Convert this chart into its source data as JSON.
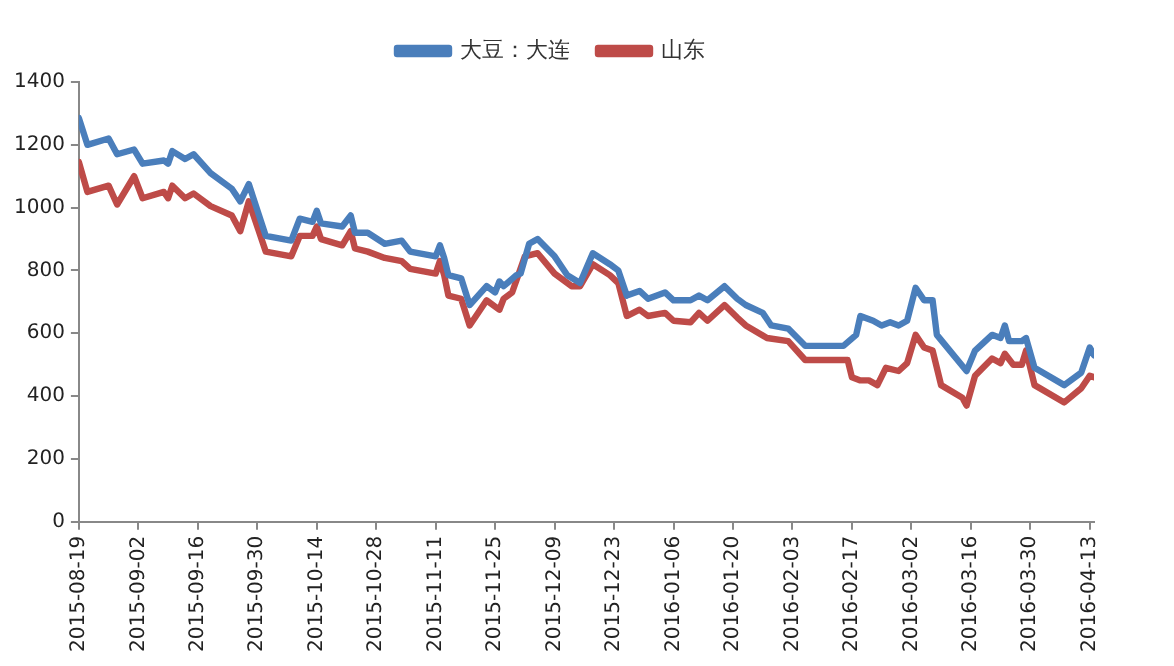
{
  "chart_data": {
    "type": "line",
    "legend": "top",
    "grid": false,
    "marker": "none",
    "line_style": "solid",
    "xlim": [
      "2015-08-19",
      "2016-04-14"
    ],
    "xticks": [
      {
        "value": "2015-08-19",
        "label": "2015-08-19"
      },
      {
        "value": "2015-09-02",
        "label": "2015-09-02"
      },
      {
        "value": "2015-09-16",
        "label": "2015-09-16"
      },
      {
        "value": "2015-09-30",
        "label": "2015-09-30"
      },
      {
        "value": "2015-10-14",
        "label": "2015-10-14"
      },
      {
        "value": "2015-10-28",
        "label": "2015-10-28"
      },
      {
        "value": "2015-11-11",
        "label": "2015-11-11"
      },
      {
        "value": "2015-11-25",
        "label": "2015-11-25"
      },
      {
        "value": "2015-12-09",
        "label": "2015-12-09"
      },
      {
        "value": "2015-12-23",
        "label": "2015-12-23"
      },
      {
        "value": "2016-01-06",
        "label": "2016-01-06"
      },
      {
        "value": "2016-01-20",
        "label": "2016-01-20"
      },
      {
        "value": "2016-02-03",
        "label": "2016-02-03"
      },
      {
        "value": "2016-02-17",
        "label": "2016-02-17"
      },
      {
        "value": "2016-03-02",
        "label": "2016-03-02"
      },
      {
        "value": "2016-03-16",
        "label": "2016-03-16"
      },
      {
        "value": "2016-03-30",
        "label": "2016-03-30"
      },
      {
        "value": "2016-04-13",
        "label": "2016-04-13"
      }
    ],
    "ylim": [
      0,
      1400
    ],
    "yticks": [
      0,
      200,
      400,
      600,
      800,
      1000,
      1200,
      1400
    ],
    "series": [
      {
        "name": "大豆：大连",
        "color": "#4a7ebb",
        "x": [
          "2015-08-19",
          "2015-08-21",
          "2015-08-26",
          "2015-08-28",
          "2015-09-01",
          "2015-09-03",
          "2015-09-08",
          "2015-09-09",
          "2015-09-10",
          "2015-09-13",
          "2015-09-15",
          "2015-09-19",
          "2015-09-24",
          "2015-09-26",
          "2015-09-28",
          "2015-10-02",
          "2015-10-08",
          "2015-10-10",
          "2015-10-13",
          "2015-10-14",
          "2015-10-15",
          "2015-10-20",
          "2015-10-22",
          "2015-10-23",
          "2015-10-26",
          "2015-10-30",
          "2015-11-03",
          "2015-11-05",
          "2015-11-11",
          "2015-11-12",
          "2015-11-13",
          "2015-11-14",
          "2015-11-17",
          "2015-11-19",
          "2015-11-23",
          "2015-11-25",
          "2015-11-26",
          "2015-11-27",
          "2015-11-30",
          "2015-12-01",
          "2015-12-03",
          "2015-12-05",
          "2015-12-09",
          "2015-12-12",
          "2015-12-15",
          "2015-12-18",
          "2015-12-22",
          "2015-12-24",
          "2015-12-26",
          "2015-12-29",
          "2015-12-31",
          "2016-01-04",
          "2016-01-06",
          "2016-01-10",
          "2016-01-12",
          "2016-01-14",
          "2016-01-18",
          "2016-01-21",
          "2016-01-23",
          "2016-01-27",
          "2016-01-29",
          "2016-02-02",
          "2016-02-06",
          "2016-02-15",
          "2016-02-18",
          "2016-02-19",
          "2016-02-22",
          "2016-02-24",
          "2016-02-26",
          "2016-02-28",
          "2016-03-01",
          "2016-03-03",
          "2016-03-05",
          "2016-03-07",
          "2016-03-08",
          "2016-03-15",
          "2016-03-17",
          "2016-03-21",
          "2016-03-23",
          "2016-03-24",
          "2016-03-25",
          "2016-03-28",
          "2016-03-29",
          "2016-03-31",
          "2016-04-07",
          "2016-04-11",
          "2016-04-13",
          "2016-04-14"
        ],
        "values": [
          1285,
          1200,
          1220,
          1170,
          1185,
          1140,
          1150,
          1140,
          1180,
          1155,
          1170,
          1110,
          1060,
          1020,
          1075,
          910,
          895,
          965,
          955,
          990,
          950,
          940,
          975,
          920,
          920,
          885,
          895,
          860,
          845,
          880,
          840,
          785,
          775,
          690,
          750,
          730,
          765,
          750,
          785,
          790,
          885,
          900,
          845,
          785,
          760,
          855,
          820,
          800,
          720,
          735,
          710,
          730,
          705,
          705,
          720,
          705,
          750,
          710,
          690,
          665,
          625,
          615,
          560,
          560,
          595,
          655,
          640,
          625,
          635,
          625,
          640,
          745,
          705,
          705,
          595,
          480,
          545,
          595,
          585,
          625,
          575,
          575,
          585,
          490,
          435,
          475,
          555,
          530
        ]
      },
      {
        "name": "山东",
        "color": "#be4b48",
        "x": [
          "2015-08-19",
          "2015-08-21",
          "2015-08-26",
          "2015-08-28",
          "2015-09-01",
          "2015-09-03",
          "2015-09-08",
          "2015-09-09",
          "2015-09-10",
          "2015-09-13",
          "2015-09-15",
          "2015-09-19",
          "2015-09-24",
          "2015-09-26",
          "2015-09-28",
          "2015-10-02",
          "2015-10-08",
          "2015-10-10",
          "2015-10-13",
          "2015-10-14",
          "2015-10-15",
          "2015-10-20",
          "2015-10-22",
          "2015-10-23",
          "2015-10-26",
          "2015-10-30",
          "2015-11-03",
          "2015-11-05",
          "2015-11-11",
          "2015-11-12",
          "2015-11-13",
          "2015-11-14",
          "2015-11-17",
          "2015-11-19",
          "2015-11-23",
          "2015-11-26",
          "2015-11-27",
          "2015-11-29",
          "2015-12-02",
          "2015-12-05",
          "2015-12-09",
          "2015-12-13",
          "2015-12-15",
          "2015-12-18",
          "2015-12-22",
          "2015-12-24",
          "2015-12-26",
          "2015-12-29",
          "2015-12-31",
          "2016-01-04",
          "2016-01-06",
          "2016-01-10",
          "2016-01-12",
          "2016-01-14",
          "2016-01-18",
          "2016-01-21",
          "2016-01-23",
          "2016-01-28",
          "2016-02-02",
          "2016-02-06",
          "2016-02-16",
          "2016-02-17",
          "2016-02-19",
          "2016-02-21",
          "2016-02-23",
          "2016-02-25",
          "2016-02-28",
          "2016-03-01",
          "2016-03-03",
          "2016-03-05",
          "2016-03-07",
          "2016-03-09",
          "2016-03-14",
          "2016-03-15",
          "2016-03-17",
          "2016-03-21",
          "2016-03-23",
          "2016-03-24",
          "2016-03-26",
          "2016-03-28",
          "2016-03-29",
          "2016-03-31",
          "2016-04-07",
          "2016-04-11",
          "2016-04-13",
          "2016-04-14"
        ],
        "values": [
          1145,
          1050,
          1070,
          1010,
          1100,
          1030,
          1050,
          1030,
          1070,
          1030,
          1045,
          1005,
          975,
          925,
          1020,
          860,
          845,
          910,
          910,
          940,
          900,
          880,
          925,
          870,
          860,
          840,
          830,
          805,
          790,
          830,
          785,
          720,
          710,
          625,
          705,
          675,
          710,
          730,
          845,
          855,
          790,
          750,
          750,
          820,
          785,
          760,
          655,
          675,
          655,
          665,
          640,
          635,
          665,
          640,
          690,
          650,
          625,
          585,
          575,
          515,
          515,
          460,
          450,
          450,
          435,
          490,
          480,
          505,
          595,
          555,
          545,
          435,
          395,
          370,
          465,
          520,
          505,
          535,
          500,
          500,
          545,
          435,
          380,
          425,
          465,
          460
        ]
      }
    ]
  }
}
